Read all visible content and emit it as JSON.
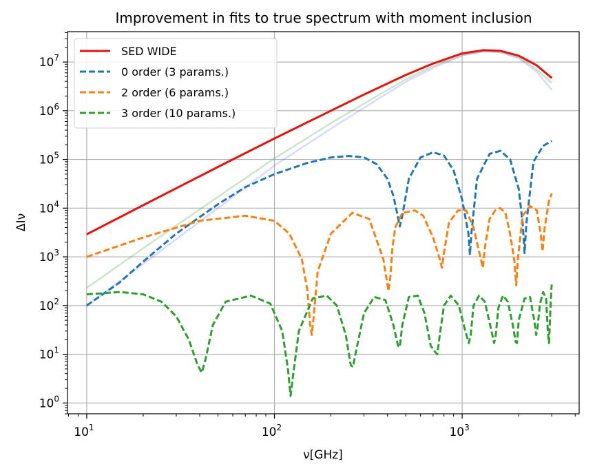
{
  "chart_data": {
    "type": "line",
    "title": "Improvement in fits to true spectrum with moment inclusion",
    "xlabel": "ν[GHz]",
    "ylabel": "ΔIν",
    "xscale": "log",
    "yscale": "log",
    "xlim": [
      7.9,
      4200
    ],
    "ylim": [
      0.6,
      42000000
    ],
    "grid": true,
    "legend_position": "top-left",
    "x_ticks": [
      {
        "value": 10,
        "base": "10",
        "exp": "1"
      },
      {
        "value": 100,
        "base": "10",
        "exp": "2"
      },
      {
        "value": 1000,
        "base": "10",
        "exp": "3"
      }
    ],
    "y_ticks": [
      {
        "value": 1,
        "base": "10",
        "exp": "0"
      },
      {
        "value": 10,
        "base": "10",
        "exp": "1"
      },
      {
        "value": 100,
        "base": "10",
        "exp": "2"
      },
      {
        "value": 1000,
        "base": "10",
        "exp": "3"
      },
      {
        "value": 10000,
        "base": "10",
        "exp": "4"
      },
      {
        "value": 100000,
        "base": "10",
        "exp": "5"
      },
      {
        "value": 1000000,
        "base": "10",
        "exp": "6"
      },
      {
        "value": 10000000,
        "base": "10",
        "exp": "7"
      }
    ],
    "series": [
      {
        "name": "SED WIDE",
        "color": "#e8120c",
        "style": "solid",
        "in_legend": true,
        "x": [
          10,
          20,
          50,
          100,
          200,
          300,
          500,
          700,
          1000,
          1300,
          1600,
          2000,
          2500,
          3000
        ],
        "y": [
          2900,
          11500,
          70000,
          270000,
          1000000,
          2150000,
          5400000,
          9300000,
          15000000,
          17500000,
          17000000,
          13500000,
          8500000,
          4700000
        ]
      },
      {
        "name": "0 order (3 params.)",
        "color": "#1f77b4",
        "style": "dashed",
        "in_legend": true,
        "x": [
          10,
          15,
          20,
          30,
          50,
          70,
          100,
          150,
          200,
          250,
          300,
          350,
          400,
          430,
          450,
          465,
          480,
          520,
          600,
          700,
          800,
          900,
          1000,
          1080,
          1100,
          1120,
          1200,
          1400,
          1600,
          1800,
          2000,
          2100,
          2150,
          2200,
          2400,
          2700,
          3000
        ],
        "y": [
          100,
          300,
          800,
          3000,
          12000,
          27000,
          50000,
          85000,
          110000,
          118000,
          110000,
          80000,
          40000,
          18000,
          8000,
          4200,
          7000,
          40000,
          110000,
          140000,
          120000,
          60000,
          15000,
          3000,
          1100,
          3000,
          40000,
          130000,
          150000,
          100000,
          25000,
          5000,
          1200,
          5000,
          90000,
          190000,
          240000
        ]
      },
      {
        "name": "2 order (6 params.)",
        "color": "#ff7f0e",
        "style": "dashed",
        "in_legend": true,
        "x": [
          10,
          20,
          40,
          70,
          100,
          120,
          140,
          150,
          155,
          158,
          162,
          170,
          200,
          260,
          320,
          380,
          405,
          415,
          425,
          440,
          480,
          560,
          620,
          700,
          760,
          780,
          800,
          850,
          950,
          1050,
          1150,
          1250,
          1290,
          1320,
          1400,
          1500,
          1600,
          1700,
          1800,
          1900,
          1940,
          1980,
          2100,
          2300,
          2500,
          2620,
          2680,
          2750,
          2900,
          3000
        ],
        "y": [
          1000,
          2500,
          5500,
          7000,
          5500,
          3000,
          900,
          200,
          40,
          25,
          60,
          500,
          3000,
          8000,
          6000,
          900,
          200,
          400,
          1500,
          4000,
          8000,
          9000,
          7000,
          2500,
          900,
          600,
          1200,
          5000,
          9000,
          9000,
          4000,
          1000,
          600,
          1500,
          6000,
          9000,
          10000,
          8000,
          3000,
          800,
          260,
          900,
          7000,
          11000,
          9000,
          3000,
          1300,
          4000,
          14000,
          20000
        ]
      },
      {
        "name": "3 order (10 params.)",
        "color": "#2ca02c",
        "style": "dashed",
        "in_legend": true,
        "x": [
          10,
          15,
          20,
          25,
          30,
          35,
          39,
          41,
          43,
          47,
          55,
          75,
          95,
          110,
          118,
          122,
          126,
          135,
          160,
          190,
          215,
          240,
          255,
          262,
          270,
          300,
          340,
          390,
          430,
          455,
          465,
          480,
          520,
          580,
          630,
          680,
          720,
          738,
          760,
          800,
          870,
          960,
          1040,
          1085,
          1110,
          1150,
          1230,
          1320,
          1420,
          1480,
          1510,
          1560,
          1650,
          1750,
          1860,
          1930,
          1960,
          2000,
          2150,
          2300,
          2420,
          2480,
          2520,
          2600,
          2700,
          2800,
          2860,
          2900,
          2940,
          2980,
          3000
        ],
        "y": [
          170,
          190,
          170,
          120,
          60,
          20,
          6,
          4.2,
          8,
          40,
          120,
          160,
          110,
          30,
          5,
          1.4,
          4,
          30,
          140,
          160,
          100,
          25,
          6,
          5.5,
          10,
          70,
          150,
          130,
          40,
          15,
          14,
          40,
          150,
          160,
          70,
          15,
          11,
          10,
          25,
          100,
          160,
          100,
          30,
          17,
          25,
          100,
          160,
          120,
          35,
          17,
          25,
          90,
          160,
          120,
          40,
          18,
          17,
          50,
          140,
          150,
          50,
          25,
          35,
          110,
          190,
          140,
          30,
          17,
          60,
          200,
          270
        ]
      },
      {
        "name": "",
        "color": "#2ca02c",
        "style": "solid-faint",
        "in_legend": false,
        "x": [
          10,
          20,
          50,
          100,
          200,
          300,
          500,
          700,
          1000,
          1300,
          1600,
          2000,
          2500,
          3000
        ],
        "y": [
          230,
          1500,
          17000,
          105000,
          560000,
          1400000,
          4400000,
          8300000,
          14000000,
          16800000,
          16000000,
          12500000,
          7000000,
          3700000
        ]
      },
      {
        "name": "",
        "color": "#6b6bff",
        "style": "solid-faint",
        "in_legend": false,
        "x": [
          10,
          20,
          50,
          100,
          200,
          300,
          500,
          700,
          1000,
          1300,
          1600,
          2000,
          2500,
          3000
        ],
        "y": [
          100,
          720,
          10000,
          75000,
          430000,
          1150000,
          3900000,
          7600000,
          13500000,
          16500000,
          15800000,
          12000000,
          6300000,
          2700000
        ]
      }
    ]
  }
}
